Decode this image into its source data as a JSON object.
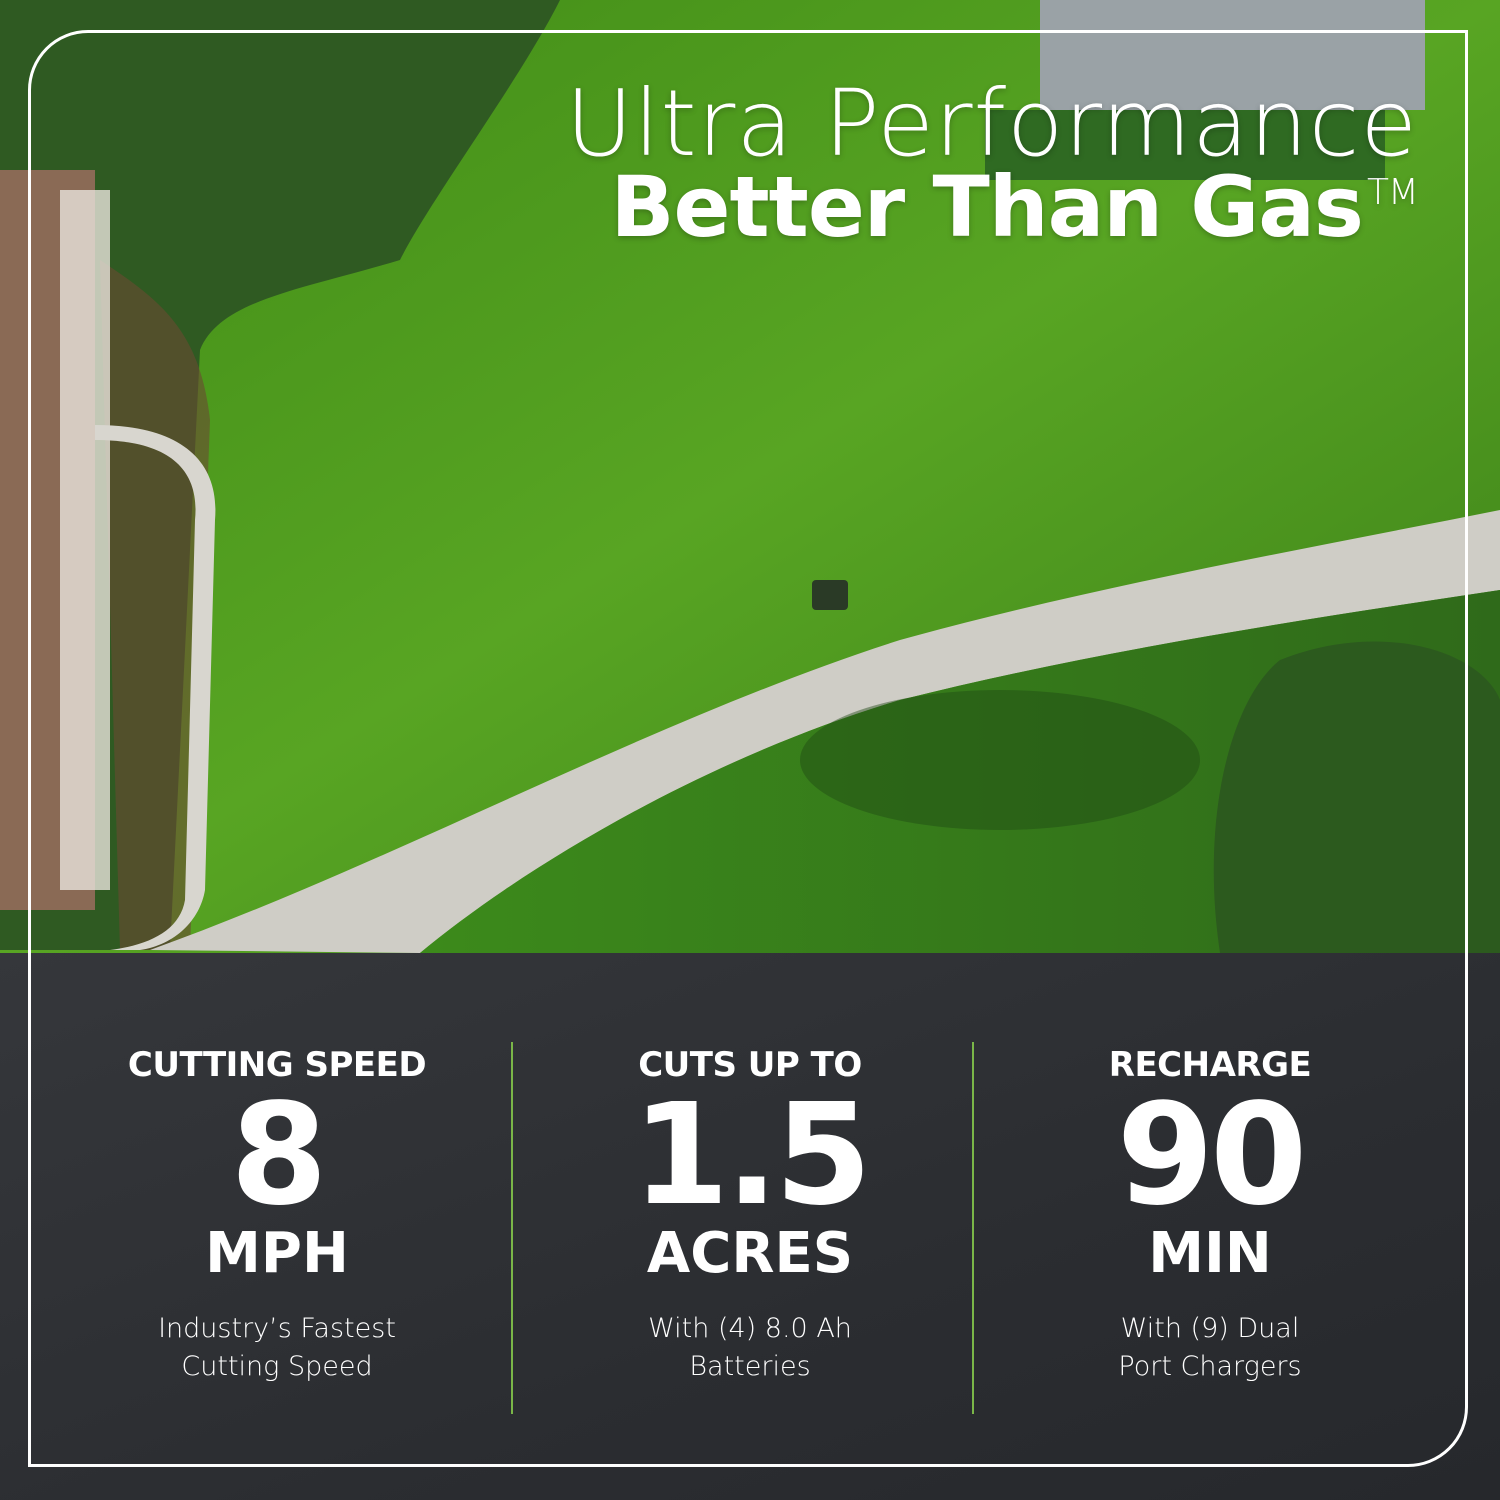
{
  "headline": {
    "line1": "Ultra Performance",
    "line2": "Better Than Gas",
    "trademark": "TM"
  },
  "stats": [
    {
      "label": "CUTTING SPEED",
      "value": "8",
      "unit": "MPH",
      "desc_line1": "Industry’s Fastest",
      "desc_line2": "Cutting Speed"
    },
    {
      "label": "CUTS UP TO",
      "value": "1.5",
      "unit": "ACRES",
      "desc_line1": "With (4) 8.0 Ah",
      "desc_line2": "Batteries"
    },
    {
      "label": "RECHARGE",
      "value": "90",
      "unit": "MIN",
      "desc_line1": "With (9) Dual",
      "desc_line2": "Port Chargers"
    }
  ],
  "colors": {
    "divider": "#7ab648",
    "panel": "#2d2f33",
    "lawn": "#4f9a1e"
  }
}
